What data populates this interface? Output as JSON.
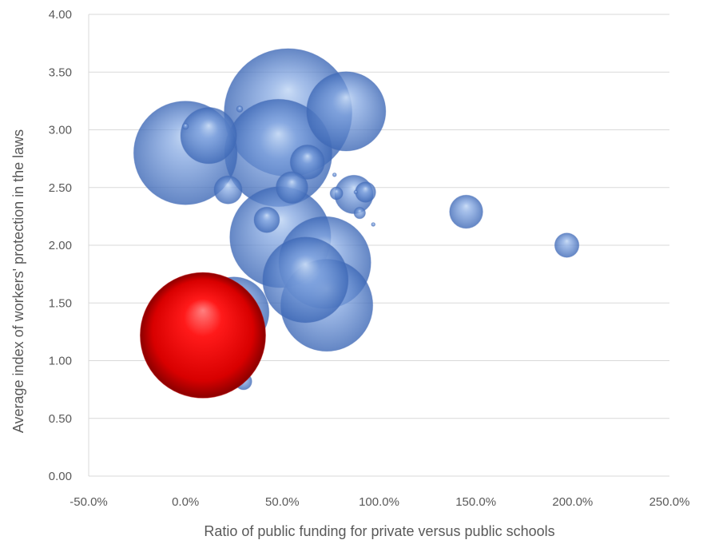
{
  "chart_data": {
    "type": "scatter",
    "subtype": "bubble",
    "title": "",
    "xlabel": "Ratio of public funding for private versus public schools",
    "ylabel": "Average index of workers' protection in the laws",
    "xlim": [
      -0.5,
      2.5
    ],
    "ylim": [
      0,
      4
    ],
    "x_ticks": [
      "-50.0%",
      "0.0%",
      "50.0%",
      "100.0%",
      "150.0%",
      "200.0%",
      "250.0%"
    ],
    "y_ticks": [
      "0.00",
      "0.50",
      "1.00",
      "1.50",
      "2.00",
      "2.50",
      "3.00",
      "3.50",
      "4.00"
    ],
    "grid": "horizontal",
    "legend": "none",
    "colors": {
      "bubble": "#4f7ac7",
      "highlight": "#e00000",
      "grid": "#d9d9d9",
      "text": "#595959"
    },
    "series": [
      {
        "points": [
          {
            "x": 0.53,
            "y": 3.15,
            "size": 1.0
          },
          {
            "x": 0.83,
            "y": 3.16,
            "size": 0.62
          },
          {
            "x": 0.0,
            "y": 2.8,
            "size": 0.81
          },
          {
            "x": 0.48,
            "y": 2.8,
            "size": 0.84
          },
          {
            "x": 0.12,
            "y": 2.95,
            "size": 0.44
          },
          {
            "x": 0.49,
            "y": 2.07,
            "size": 0.79
          },
          {
            "x": 0.72,
            "y": 1.85,
            "size": 0.72
          },
          {
            "x": 0.62,
            "y": 1.7,
            "size": 0.67
          },
          {
            "x": 0.73,
            "y": 1.48,
            "size": 0.72
          },
          {
            "x": 0.25,
            "y": 1.42,
            "size": 0.55
          },
          {
            "x": 0.63,
            "y": 2.72,
            "size": 0.27
          },
          {
            "x": 0.55,
            "y": 2.5,
            "size": 0.25
          },
          {
            "x": 0.22,
            "y": 2.48,
            "size": 0.22
          },
          {
            "x": 0.42,
            "y": 2.22,
            "size": 0.2
          },
          {
            "x": 0.87,
            "y": 2.44,
            "size": 0.3
          },
          {
            "x": 0.93,
            "y": 2.46,
            "size": 0.16
          },
          {
            "x": 0.78,
            "y": 2.45,
            "size": 0.1
          },
          {
            "x": 0.9,
            "y": 2.28,
            "size": 0.09
          },
          {
            "x": 1.45,
            "y": 2.29,
            "size": 0.26
          },
          {
            "x": 1.97,
            "y": 2.0,
            "size": 0.19
          },
          {
            "x": 0.3,
            "y": 0.82,
            "size": 0.13
          },
          {
            "x": 0.0,
            "y": 3.03,
            "size": 0.05
          },
          {
            "x": 0.28,
            "y": 3.18,
            "size": 0.05
          },
          {
            "x": 0.77,
            "y": 2.61,
            "size": 0.03
          },
          {
            "x": 0.97,
            "y": 2.18,
            "size": 0.03
          },
          {
            "x": 0.88,
            "y": 2.46,
            "size": 0.03
          }
        ]
      },
      {
        "highlight": true,
        "points": [
          {
            "x": 0.09,
            "y": 1.22,
            "size": 0.98
          }
        ]
      }
    ]
  }
}
